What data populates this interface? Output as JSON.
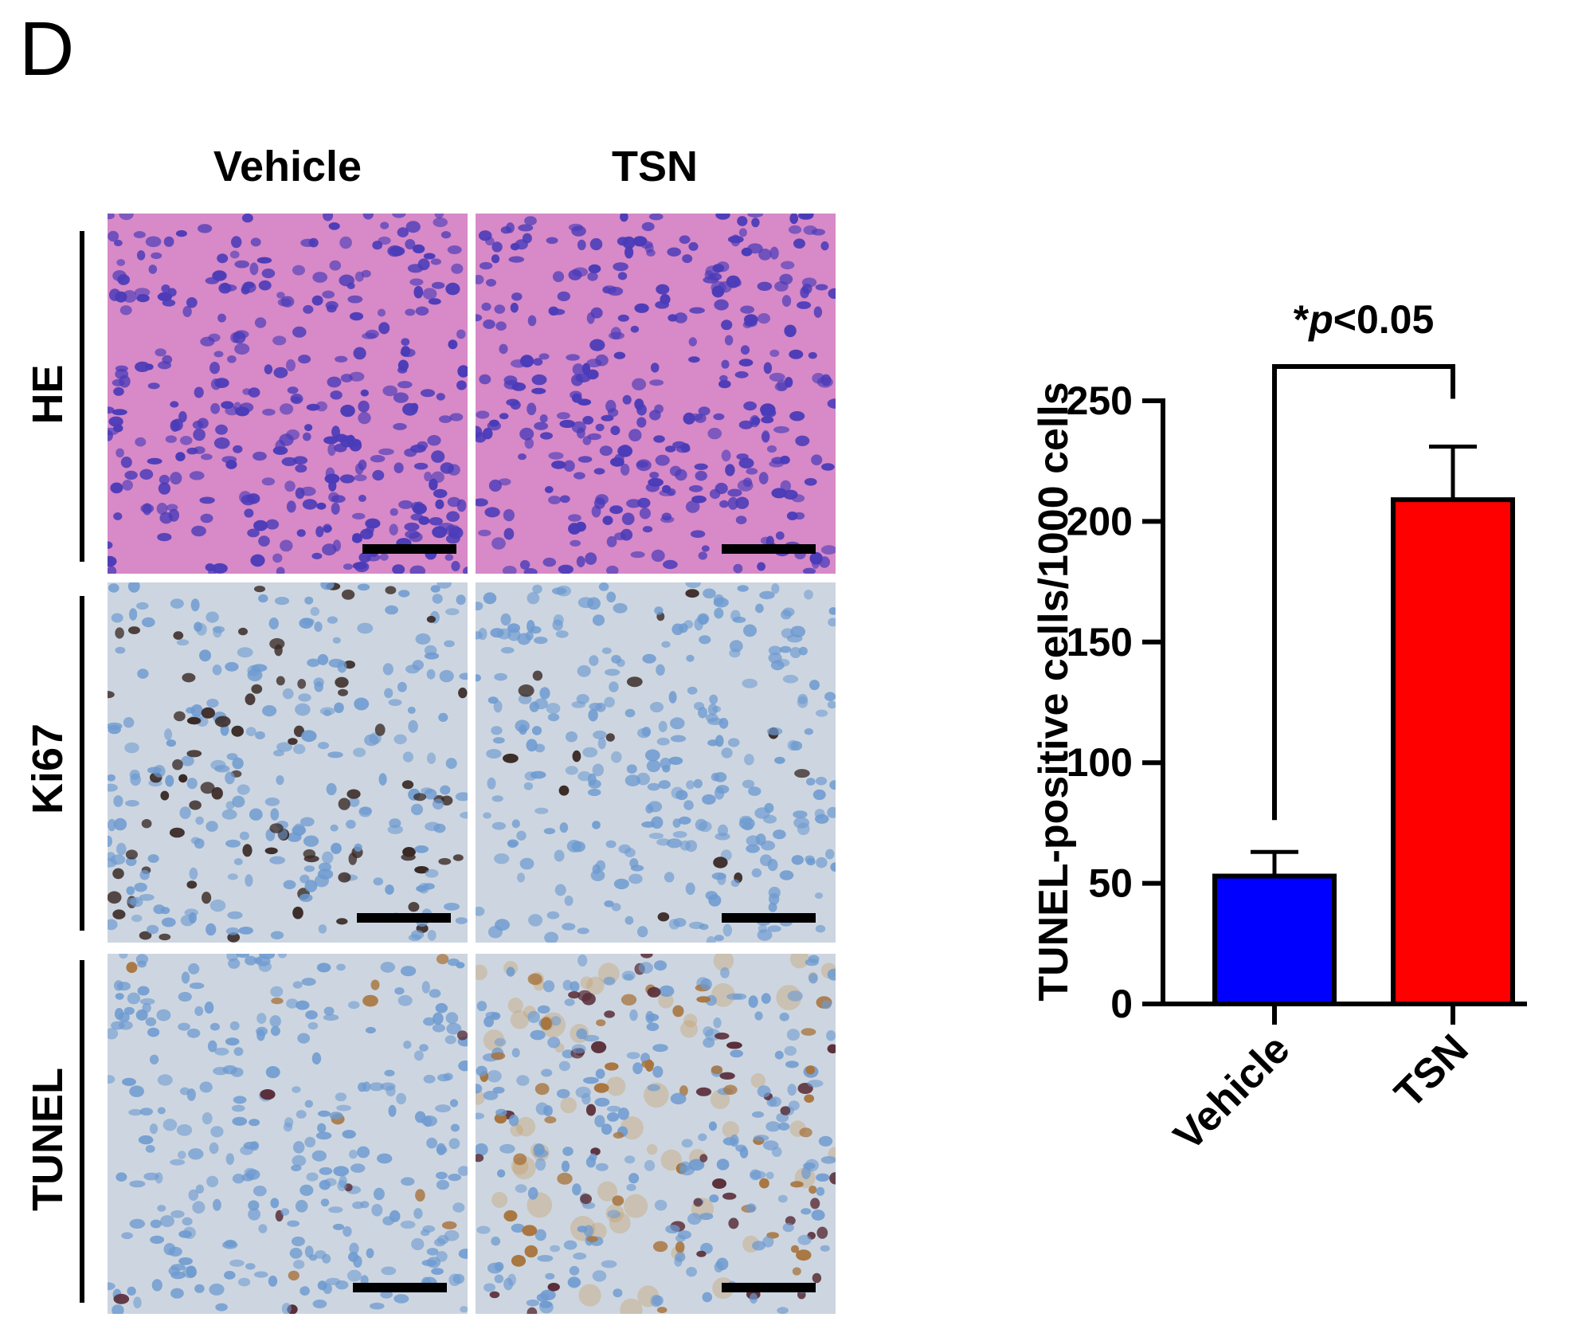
{
  "figure": {
    "panel_label": "D",
    "columns": [
      "Vehicle",
      "TSN"
    ],
    "rows": [
      "HE",
      "Ki67",
      "TUNEL"
    ]
  },
  "colors": {
    "he_background": "#d78ac7",
    "he_nuclei": "#4a3bb8",
    "ihc_background": "#cdd6e0",
    "ihc_nuclei_blue": "#6d9ad0",
    "ihc_positive_dark": "#3a2a26",
    "ihc_positive_brown": "#a8743d",
    "vehicle_bar": "#0000ff",
    "tsn_bar": "#ff0000"
  },
  "chart_data": {
    "type": "bar",
    "categories": [
      "Vehicle",
      "TSN"
    ],
    "values": [
      53,
      209
    ],
    "errors": [
      10,
      22
    ],
    "colors": [
      "#0000ff",
      "#ff0000"
    ],
    "ylabel": "TUNEL-positive cells/1000 cells",
    "ylim": [
      0,
      250
    ],
    "yticks": [
      0,
      50,
      100,
      150,
      200,
      250
    ],
    "annotation": {
      "star": "*",
      "p": "p",
      "rest": "<0.05"
    },
    "grid": false,
    "legend": "none"
  }
}
